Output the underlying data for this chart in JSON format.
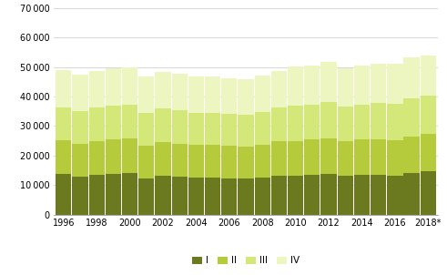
{
  "Q1": [
    13700,
    12800,
    13500,
    13700,
    14000,
    12200,
    13000,
    12800,
    12500,
    12500,
    12200,
    12200,
    12500,
    13300,
    13300,
    13500,
    13800,
    13200,
    13500,
    13500,
    13200,
    14000,
    14800
  ],
  "Q2": [
    11500,
    11300,
    11500,
    11800,
    11700,
    11300,
    11500,
    11300,
    11100,
    11100,
    11100,
    10900,
    11100,
    11500,
    11700,
    11900,
    12100,
    11700,
    11900,
    12000,
    12000,
    12500,
    12700
  ],
  "Q3": [
    11200,
    11100,
    11300,
    11400,
    11600,
    11100,
    11400,
    11200,
    10900,
    11000,
    10900,
    10800,
    11200,
    11400,
    12100,
    12000,
    12300,
    11800,
    12000,
    12300,
    12300,
    12800,
    12900
  ],
  "Q4": [
    12700,
    12400,
    12500,
    12600,
    12700,
    12200,
    12600,
    12500,
    12200,
    12100,
    12100,
    12000,
    12400,
    12500,
    13100,
    13300,
    13600,
    13000,
    13200,
    13500,
    13700,
    14000,
    13500
  ],
  "colors": [
    "#6b7a1e",
    "#b5cb3c",
    "#d4e87a",
    "#edf5c0"
  ],
  "legend_labels": [
    "I",
    "II",
    "III",
    "IV"
  ],
  "ylim": [
    0,
    70000
  ],
  "yticks": [
    0,
    10000,
    20000,
    30000,
    40000,
    50000,
    60000,
    70000
  ],
  "xtick_positions": [
    0,
    2,
    4,
    6,
    8,
    10,
    12,
    14,
    16,
    18,
    20,
    22
  ],
  "xtick_labels": [
    "1996",
    "1998",
    "2000",
    "2002",
    "2004",
    "2006",
    "2008",
    "2010",
    "2012",
    "2014",
    "2016",
    "2018*"
  ],
  "background_color": "#ffffff",
  "grid_color": "#c8c8c8"
}
